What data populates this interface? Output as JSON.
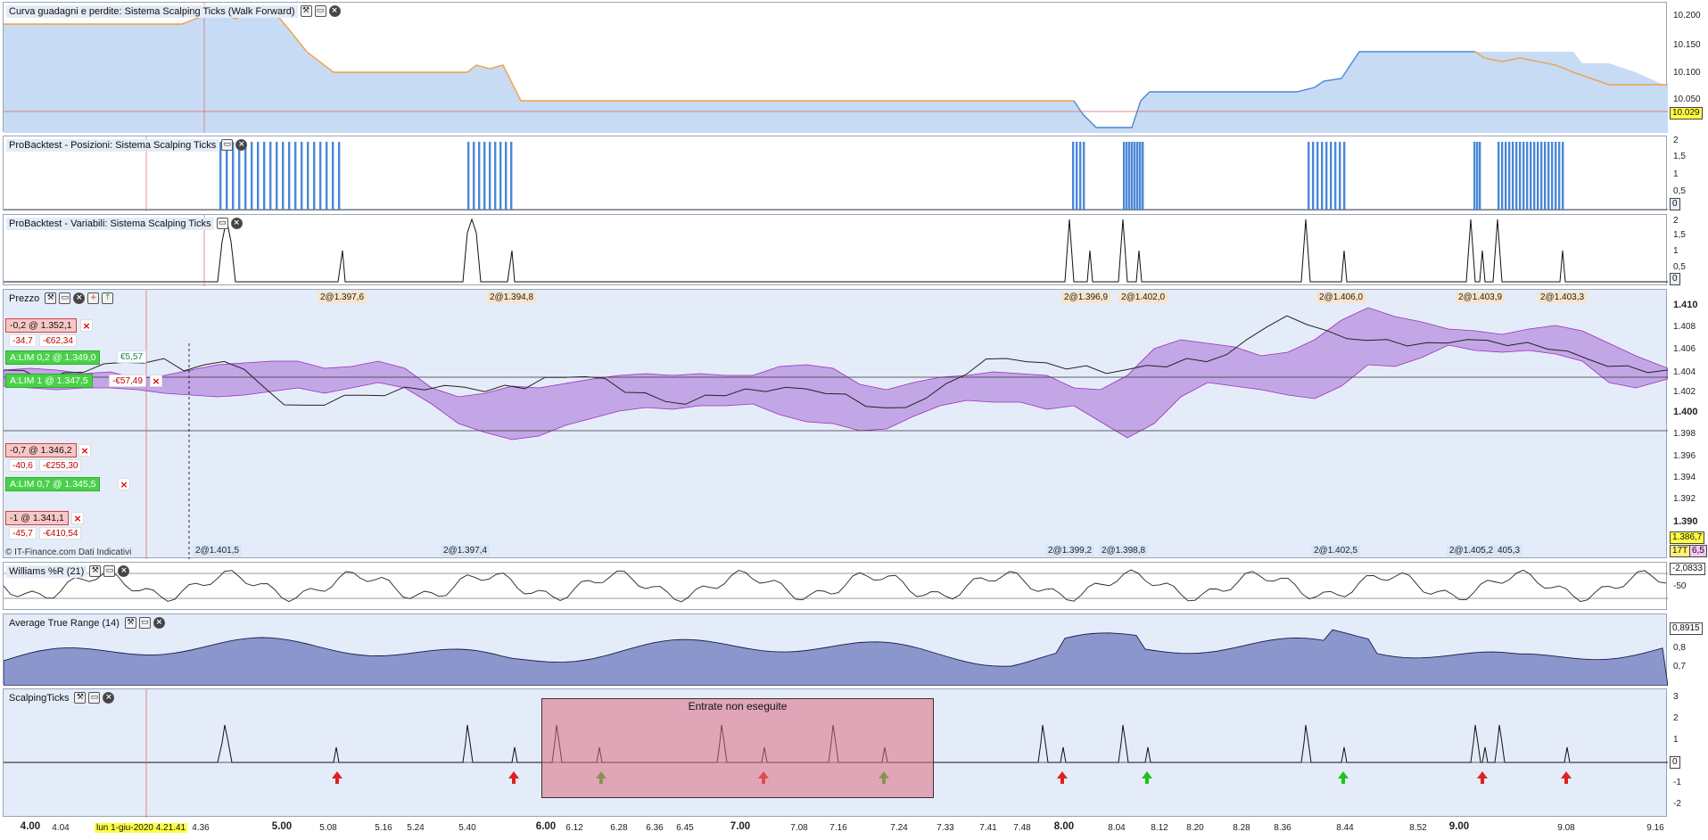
{
  "panes": {
    "equity": {
      "title": "Curva guadagni e perdite: Sistema Scalping Ticks (Walk Forward)",
      "ticks": [
        "10.200",
        "10.150",
        "10.100",
        "10.050"
      ],
      "last_value": "10.029"
    },
    "positions": {
      "title": "ProBacktest - Posizioni: Sistema Scalping Ticks",
      "ticks": [
        "2",
        "1,5",
        "1",
        "0,5"
      ],
      "last_value": "0"
    },
    "variables": {
      "title": "ProBacktest - Variabili: Sistema Scalping Ticks",
      "ticks": [
        "2",
        "1,5",
        "1",
        "0,5"
      ],
      "last_value": "0"
    },
    "price": {
      "title": "Prezzo",
      "ticks": [
        "1.410",
        "1.408",
        "1.406",
        "1.404",
        "1.402",
        "1.400",
        "1.398",
        "1.396",
        "1.394",
        "1.392",
        "1.390"
      ],
      "last_value": "1.386,7",
      "last_sub": "17T",
      "last_sub2": "6,5",
      "copyright": "© IT-Finance.com  Dati Indicativi",
      "top_trades": [
        "2@1.397,6",
        "2@1.394,8",
        "2@1.396,9",
        "2@1.402,0",
        "2@1.406,0",
        "2@1.403,9",
        "2@1.403,3"
      ],
      "bottom_trades": [
        "2@1.401,5",
        "2@1.397,4",
        "2@1.399,2",
        "2@1.398,8",
        "2@1.402,5",
        "2@1.405,2",
        "405,3"
      ]
    },
    "williams": {
      "title": "Williams %R (21)",
      "ticks": [
        "-50"
      ],
      "last_value": "-2,0833"
    },
    "atr": {
      "title": "Average True Range (14)",
      "ticks": [
        "0,8",
        "0,7"
      ],
      "last_value": "0,8915"
    },
    "scalping": {
      "title": "ScalpingTicks",
      "ticks": [
        "3",
        "2",
        "1",
        "0",
        "-1",
        "-2"
      ],
      "last_value": "0",
      "box_label": "Entrate non eseguite"
    }
  },
  "orders": [
    {
      "label": "-0,2 @ 1.352,1",
      "sub1": "-34,7",
      "sub2": "-€62,34",
      "type": "red"
    },
    {
      "label": "A:LIM  0,2 @ 1.349,0",
      "sub1": "€5,57",
      "type": "green"
    },
    {
      "label": "A:LIM  1 @ 1.347,5",
      "sub1": "-€57,49",
      "type": "green"
    },
    {
      "label": "-0,7 @ 1.346,2",
      "sub1": "-40,6",
      "sub2": "-€255,30",
      "type": "red"
    },
    {
      "label": "A:LIM  0,7 @ 1.345,5",
      "type": "green"
    },
    {
      "label": "-1 @ 1.341,1",
      "sub1": "-45,7",
      "sub2": "-€410,54",
      "type": "red"
    }
  ],
  "xaxis": {
    "labels": [
      "4.00",
      "4.04",
      "4.21.41",
      "4.36",
      "5.00",
      "5.08",
      "5.16",
      "5.24",
      "5.40",
      "6.00",
      "6.12",
      "6.28",
      "6.36",
      "6.45",
      "7.00",
      "7.08",
      "7.16",
      "7.24",
      "7.33",
      "7.41",
      "7.48",
      "8.00",
      "8.04",
      "8.12",
      "8.20",
      "8.28",
      "8.36",
      "8.44",
      "8.52",
      "9.00",
      "9.08",
      "9.16"
    ],
    "cursor": "lun 1-giu-2020 4.21.41"
  },
  "colors": {
    "band": "#a86ed6",
    "equity_fill": "#c7dbf5",
    "equity_line_up": "#f0a040",
    "equity_line_down": "#4d87d6",
    "bars": "#4a88d8"
  }
}
